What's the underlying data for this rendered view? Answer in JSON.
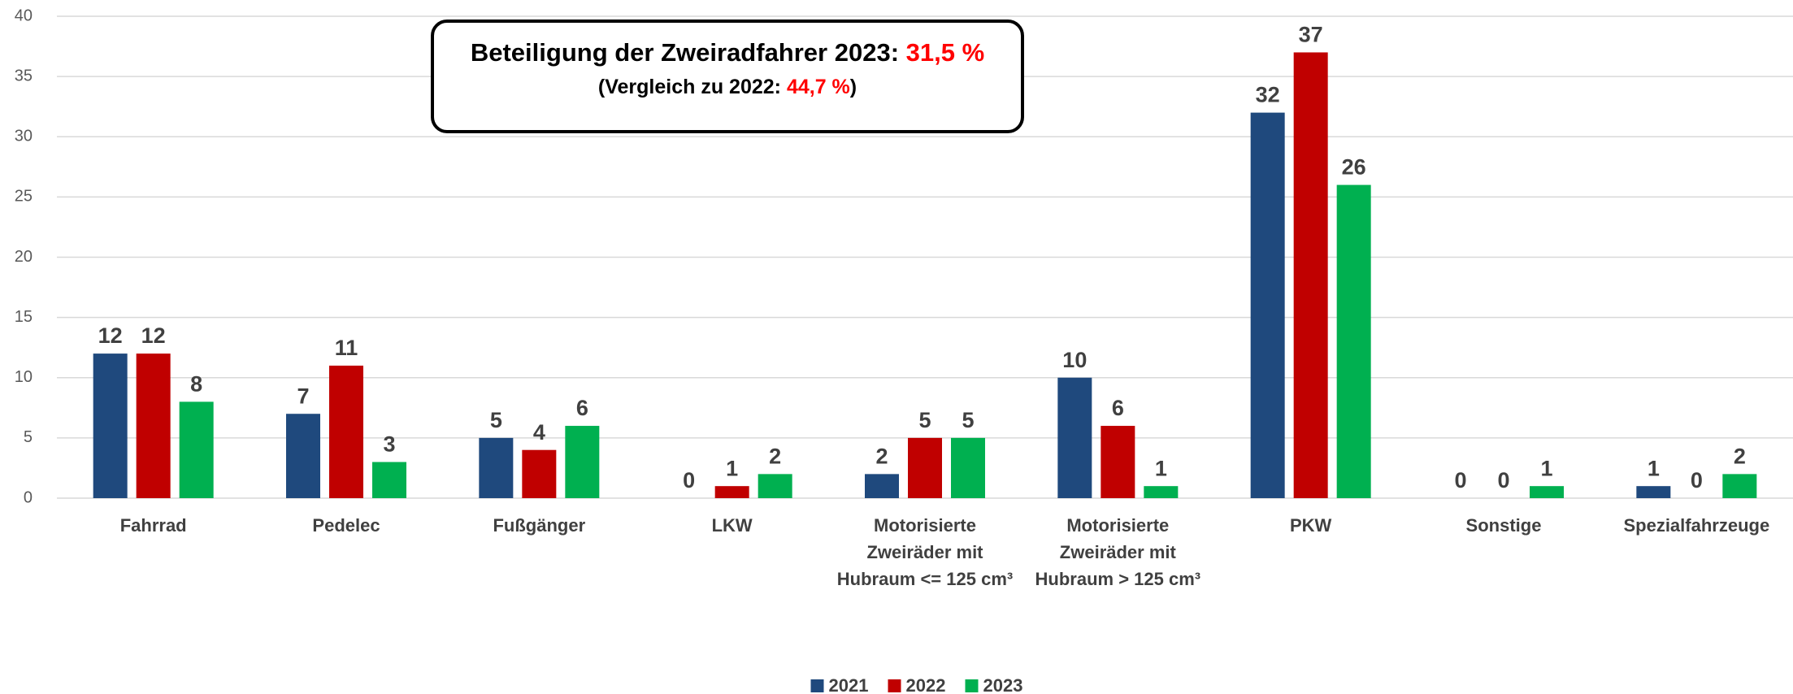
{
  "chart_data": {
    "type": "bar",
    "categories": [
      "Fahrrad",
      "Pedelec",
      "Fußgänger",
      "LKW",
      "Motorisierte\nZweiräder mit\nHubraum <= 125 cm³",
      "Motorisierte\nZweiräder mit\nHubraum > 125 cm³",
      "PKW",
      "Sonstige",
      "Spezialfahrzeuge"
    ],
    "series": [
      {
        "name": "2021",
        "color": "#1f497d",
        "values": [
          12,
          7,
          5,
          0,
          2,
          10,
          32,
          0,
          1
        ]
      },
      {
        "name": "2022",
        "color": "#c00000",
        "values": [
          12,
          11,
          4,
          1,
          5,
          6,
          37,
          0,
          0
        ]
      },
      {
        "name": "2023",
        "color": "#00b050",
        "values": [
          8,
          3,
          6,
          2,
          5,
          1,
          26,
          1,
          2
        ]
      }
    ],
    "ylim": [
      0,
      40
    ],
    "yticks": [
      0,
      5,
      10,
      15,
      20,
      25,
      30,
      35,
      40
    ],
    "grid": true,
    "legend": "bottom",
    "annotation": {
      "line1": "Beteiligung der Zweiradfahrer 2023: ",
      "line1_highlight": "31,5 %",
      "line2": "(Vergleich zu 2022: ",
      "line2_highlight": "44,7 %",
      "line2_end": ")"
    }
  }
}
